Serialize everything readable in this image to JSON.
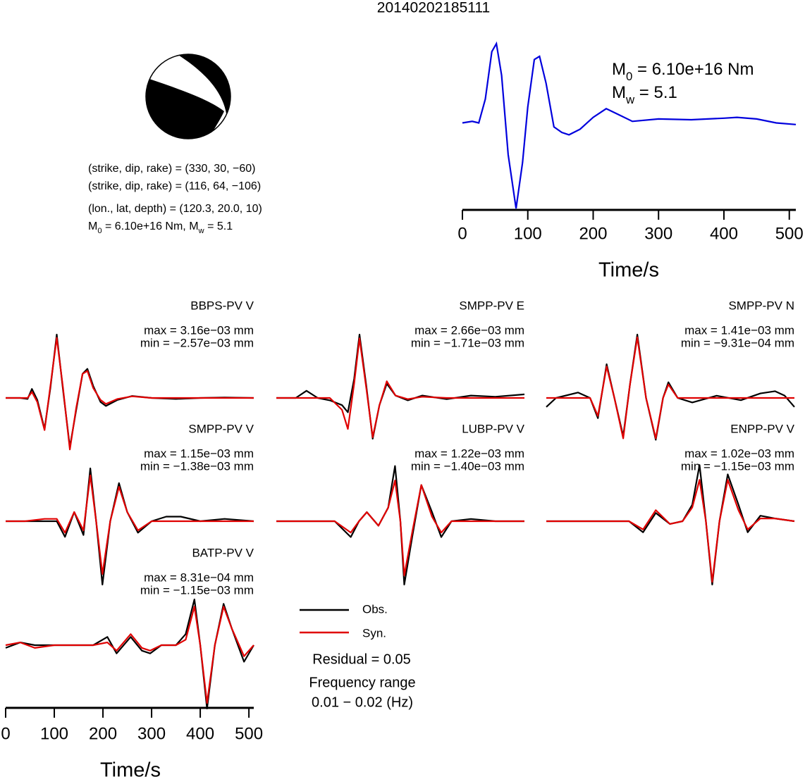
{
  "title": "20140202185111",
  "mechanism": {
    "lines": [
      "(strike, dip, rake) = (330, 30, −60)",
      "(strike, dip, rake) = (116, 64, −106)",
      "(lon., lat, depth) = (120.3, 20.0, 10)"
    ],
    "moment_parts": [
      "M",
      "0",
      " = 6.10e+16 Nm, M",
      "w",
      " = 5.1"
    ]
  },
  "chart_data": [
    {
      "type": "line",
      "x_label": "Time/s",
      "moment_parts": [
        "M",
        "0",
        " = 6.10e+16 Nm"
      ],
      "magnitude_parts": [
        "M",
        "w",
        " = 5.1"
      ],
      "color": "#0000dd",
      "x": [
        0,
        15,
        25,
        35,
        45,
        52,
        60,
        70,
        82,
        92,
        100,
        110,
        118,
        128,
        140,
        152,
        163,
        180,
        200,
        220,
        240,
        260,
        300,
        350,
        400,
        420,
        450,
        480,
        510
      ],
      "values": [
        0,
        0.02,
        0,
        0.3,
        0.9,
        1.0,
        0.6,
        -0.4,
        -1.08,
        -0.5,
        0.2,
        0.8,
        0.84,
        0.5,
        -0.05,
        -0.12,
        -0.15,
        -0.08,
        0.07,
        0.18,
        0.1,
        0.02,
        0.05,
        0.04,
        0.06,
        0.07,
        0.05,
        0.0,
        -0.02
      ],
      "xlim": [
        0,
        510
      ],
      "xticks": [
        0,
        100,
        200,
        300,
        400,
        500
      ]
    },
    {
      "type": "waveforms",
      "x_label": "Time/s",
      "xlim": [
        0,
        510
      ],
      "xticks": [
        0,
        100,
        200,
        300,
        400,
        500
      ],
      "residual_label": "Residual = 0.05",
      "frequency_label": "Frequency range",
      "frequency_range": "0.01 − 0.02 (Hz)",
      "panels": [
        {
          "title": "BBPS-PV V",
          "max_label": "max = 3.16e−03 mm",
          "min_label": "min = −2.57e−03 mm",
          "x": [
            0,
            30,
            45,
            54,
            65,
            80,
            92,
            105,
            118,
            132,
            145,
            158,
            168,
            180,
            195,
            206,
            230,
            260,
            300,
            350,
            400,
            450,
            510
          ],
          "series": [
            {
              "name": "Obs.",
              "color": "#000000",
              "values": [
                0,
                0,
                -0.05,
                0.45,
                -0.1,
                -1.55,
                0.5,
                3.16,
                0.4,
                -2.45,
                -0.6,
                1.2,
                1.45,
                0.6,
                -0.2,
                -0.4,
                -0.1,
                0.1,
                0,
                -0.05,
                0,
                0.02,
                0
              ]
            },
            {
              "name": "Syn.",
              "color": "#e00000",
              "values": [
                0,
                0,
                0,
                0.3,
                -0.2,
                -1.6,
                0.6,
                3.0,
                0.5,
                -2.57,
                -0.5,
                1.2,
                1.35,
                0.5,
                -0.1,
                -0.3,
                -0.05,
                0.08,
                0,
                0,
                0,
                0,
                0
              ]
            }
          ]
        },
        {
          "title": "SMPP-PV E",
          "max_label": "max = 2.66e−03 mm",
          "min_label": "min = −1.71e−03 mm",
          "x": [
            0,
            40,
            62,
            85,
            110,
            135,
            147,
            160,
            171,
            185,
            198,
            212,
            227,
            245,
            270,
            300,
            350,
            400,
            450,
            510
          ],
          "series": [
            {
              "name": "Obs.",
              "color": "#000000",
              "values": [
                0,
                0,
                0.3,
                0,
                -0.1,
                -0.3,
                -0.6,
                0.8,
                2.66,
                0.5,
                -1.71,
                -0.3,
                0.6,
                0.1,
                -0.1,
                0.1,
                -0.05,
                0.1,
                0.05,
                0.15
              ]
            },
            {
              "name": "Syn.",
              "color": "#e00000",
              "values": [
                0,
                0,
                0,
                0,
                0,
                -0.5,
                -1.3,
                0.6,
                2.5,
                0.4,
                -1.65,
                -0.3,
                0.7,
                0.1,
                -0.05,
                0.05,
                0,
                0,
                0,
                0
              ]
            }
          ]
        },
        {
          "title": "SMPP-PV N",
          "max_label": "max = 1.41e−03 mm",
          "min_label": "min = −9.31e−04 mm",
          "x": [
            0,
            20,
            65,
            90,
            106,
            124,
            140,
            158,
            172,
            187,
            205,
            225,
            240,
            251,
            270,
            300,
            350,
            400,
            440,
            470,
            490,
            510
          ],
          "series": [
            {
              "name": "Obs.",
              "color": "#000000",
              "values": [
                -0.2,
                0,
                0.12,
                0,
                -0.45,
                0.75,
                0,
                -0.85,
                0.3,
                1.41,
                0,
                -0.93,
                0,
                0.35,
                0,
                -0.1,
                0.05,
                -0.05,
                0.1,
                0.15,
                0.05,
                -0.2
              ]
            },
            {
              "name": "Syn.",
              "color": "#e00000",
              "values": [
                0,
                0,
                0,
                0,
                -0.4,
                0.7,
                0,
                -0.9,
                0.3,
                1.35,
                0,
                -0.9,
                0,
                0.3,
                0,
                0,
                0,
                0,
                0,
                0,
                0,
                0
              ]
            }
          ]
        },
        {
          "title": "SMPP-PV V",
          "max_label": "max = 1.15e−03 mm",
          "min_label": "min = −1.38e−03 mm",
          "x": [
            0,
            40,
            80,
            105,
            122,
            141,
            160,
            174,
            186,
            199,
            215,
            233,
            250,
            272,
            300,
            330,
            360,
            400,
            450,
            510
          ],
          "series": [
            {
              "name": "Obs.",
              "color": "#000000",
              "values": [
                0,
                0,
                0,
                0,
                -0.34,
                0.2,
                -0.3,
                1.15,
                0,
                -1.38,
                0,
                0.83,
                0.2,
                -0.25,
                0,
                0.1,
                0.1,
                0,
                0.05,
                0
              ]
            },
            {
              "name": "Syn.",
              "color": "#e00000",
              "values": [
                0,
                0,
                0.05,
                0.05,
                -0.25,
                0.2,
                -0.2,
                1.0,
                0,
                -1.15,
                0,
                0.75,
                0.2,
                -0.2,
                0,
                0,
                0,
                0,
                0,
                0
              ]
            }
          ]
        },
        {
          "title": "LUBP-PV V",
          "max_label": "max = 1.22e−03 mm",
          "min_label": "min = −1.40e−03 mm",
          "x": [
            0,
            40,
            80,
            120,
            153,
            170,
            186,
            210,
            230,
            244,
            255,
            263,
            280,
            298,
            320,
            339,
            360,
            400,
            450,
            510
          ],
          "series": [
            {
              "name": "Obs.",
              "color": "#000000",
              "values": [
                0,
                0,
                0,
                0,
                -0.35,
                0,
                0.2,
                -0.1,
                0.3,
                1.22,
                0,
                -1.4,
                -0.3,
                0.8,
                0.2,
                -0.35,
                0,
                0.05,
                0,
                0
              ]
            },
            {
              "name": "Syn.",
              "color": "#e00000",
              "values": [
                0,
                0,
                0,
                0,
                -0.25,
                0,
                0.2,
                -0.1,
                0.3,
                0.9,
                0,
                -1.2,
                -0.2,
                0.8,
                0.1,
                -0.25,
                0,
                0,
                0,
                0
              ]
            }
          ]
        },
        {
          "title": "ENPP-PV V",
          "max_label": "max = 1.02e−03 mm",
          "min_label": "min = −1.15e−03 mm",
          "x": [
            0,
            60,
            120,
            170,
            199,
            225,
            254,
            280,
            300,
            315,
            328,
            341,
            356,
            373,
            395,
            414,
            440,
            470,
            510
          ],
          "series": [
            {
              "name": "Obs.",
              "color": "#000000",
              "values": [
                0,
                0,
                0,
                0,
                -0.2,
                0.15,
                -0.05,
                0,
                0.3,
                1.02,
                0,
                -1.15,
                0,
                0.85,
                0.3,
                -0.2,
                0.1,
                0.05,
                0
              ]
            },
            {
              "name": "Syn.",
              "color": "#e00000",
              "values": [
                0,
                0,
                0,
                0,
                -0.15,
                0.2,
                -0.05,
                0,
                0.25,
                0.75,
                0,
                -1.1,
                0,
                0.75,
                0.2,
                -0.15,
                0.05,
                0.05,
                0
              ]
            }
          ]
        },
        {
          "title": "BATP-PV V",
          "max_label": "max = 8.31e−04 mm",
          "min_label": "min = −1.15e−03 mm",
          "x": [
            0,
            30,
            60,
            100,
            140,
            180,
            209,
            228,
            257,
            280,
            297,
            320,
            350,
            370,
            388,
            400,
            414,
            430,
            448,
            465,
            490,
            510
          ],
          "series": [
            {
              "name": "Obs.",
              "color": "#000000",
              "values": [
                -0.05,
                0.05,
                0,
                0,
                0,
                0,
                0.15,
                -0.15,
                0.15,
                -0.1,
                -0.15,
                0,
                0,
                0.2,
                0.831,
                0,
                -1.15,
                0,
                0.75,
                0.3,
                -0.3,
                0
              ]
            },
            {
              "name": "Syn.",
              "color": "#e00000",
              "values": [
                0,
                0.05,
                -0.05,
                0,
                0,
                0,
                0.05,
                -0.1,
                0.2,
                -0.05,
                -0.1,
                0,
                0,
                0.1,
                0.7,
                0,
                -1.05,
                0,
                0.7,
                0.3,
                -0.2,
                0
              ]
            }
          ]
        }
      ]
    }
  ]
}
